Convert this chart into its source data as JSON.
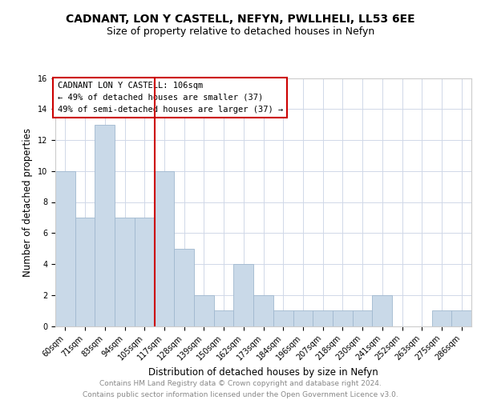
{
  "title1": "CADNANT, LON Y CASTELL, NEFYN, PWLLHELI, LL53 6EE",
  "title2": "Size of property relative to detached houses in Nefyn",
  "xlabel": "Distribution of detached houses by size in Nefyn",
  "ylabel": "Number of detached properties",
  "categories": [
    "60sqm",
    "71sqm",
    "83sqm",
    "94sqm",
    "105sqm",
    "117sqm",
    "128sqm",
    "139sqm",
    "150sqm",
    "162sqm",
    "173sqm",
    "184sqm",
    "196sqm",
    "207sqm",
    "218sqm",
    "230sqm",
    "241sqm",
    "252sqm",
    "263sqm",
    "275sqm",
    "286sqm"
  ],
  "values": [
    10,
    7,
    13,
    7,
    7,
    10,
    5,
    2,
    1,
    4,
    2,
    1,
    1,
    1,
    1,
    1,
    2,
    0,
    0,
    1,
    1
  ],
  "bar_color": "#c9d9e8",
  "bar_edge_color": "#a0b8cf",
  "vline_x_index": 4,
  "vline_color": "#cc0000",
  "annotation_line1": "CADNANT LON Y CASTELL: 106sqm",
  "annotation_line2": "← 49% of detached houses are smaller (37)",
  "annotation_line3": "49% of semi-detached houses are larger (37) →",
  "annotation_box_edgecolor": "#cc0000",
  "ylim": [
    0,
    16
  ],
  "yticks": [
    0,
    2,
    4,
    6,
    8,
    10,
    12,
    14,
    16
  ],
  "grid_color": "#d0d8e8",
  "footer": "Contains HM Land Registry data © Crown copyright and database right 2024.\nContains public sector information licensed under the Open Government Licence v3.0.",
  "title1_fontsize": 10,
  "title2_fontsize": 9,
  "xlabel_fontsize": 8.5,
  "ylabel_fontsize": 8.5,
  "footer_fontsize": 6.5,
  "tick_fontsize": 7,
  "annotation_fontsize": 7.5
}
